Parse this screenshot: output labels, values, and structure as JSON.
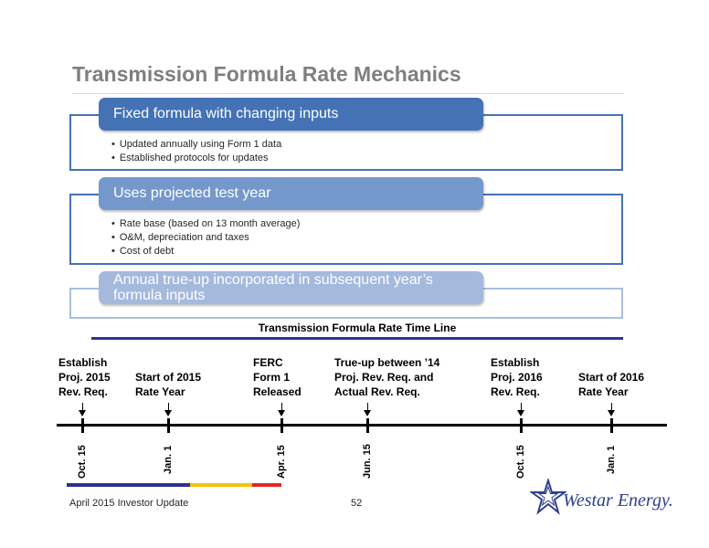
{
  "slide": {
    "title": "Transmission Formula Rate Mechanics"
  },
  "boxes": [
    {
      "heading": "Fixed formula with changing inputs",
      "bullets": [
        "Updated annually using Form 1 data",
        "Established protocols for updates"
      ]
    },
    {
      "heading": "Uses projected test year",
      "bullets": [
        "Rate base (based on 13 month average)",
        "O&M, depreciation and taxes",
        "Cost of debt"
      ]
    },
    {
      "heading": "Annual true-up incorporated in subsequent year’s formula inputs",
      "bullets": []
    }
  ],
  "timeline": {
    "title": "Transmission Formula Rate Time Line",
    "events": [
      "Establish\nProj. 2015\nRev.  Req.",
      "Start of 2015\nRate Year",
      "FERC\nForm 1\nReleased",
      "True-up between ’14\nProj. Rev. Req. and\nActual Rev. Req.",
      "Establish\nProj. 2016\nRev. Req.",
      "Start of 2016\nRate Year"
    ],
    "dates": [
      "Oct. 15",
      "Jan. 1",
      "Apr. 15",
      "Jun. 15",
      "Oct. 15",
      "Jan. 1"
    ],
    "bar_colors": [
      "#2e3192",
      "#f4c20d",
      "#e3262a"
    ]
  },
  "footer": {
    "left": "April 2015 Investor Update",
    "page": "52",
    "logo_text": "Westar Energy."
  },
  "colors": {
    "title": "#7f7f7f",
    "box_border": "#4472b5",
    "pill_1": "#4472b5",
    "pill_2": "#7598cc",
    "pill_3": "#a5b9dd",
    "timeline_rule": "#2e3192"
  }
}
